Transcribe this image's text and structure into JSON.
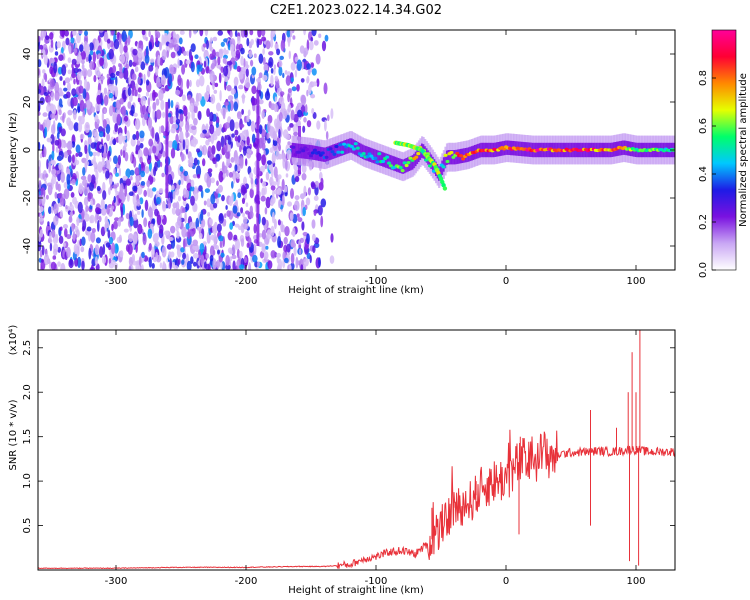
{
  "title": "C2E1.2023.022.14.34.G02",
  "chart_data": [
    {
      "type": "heatmap",
      "title": "C2E1.2023.022.14.34.G02",
      "xlabel": "Height of straight line (km)",
      "ylabel": "Frequency (Hz)",
      "xlim": [
        -360,
        130
      ],
      "ylim": [
        -50,
        50
      ],
      "x_ticks": [
        -300,
        -200,
        -100,
        0,
        100
      ],
      "x_tick_labels": [
        "-300",
        "-200",
        "-100",
        "0",
        "100"
      ],
      "y_ticks": [
        -40,
        -20,
        0,
        20,
        40
      ],
      "y_tick_labels": [
        "-40",
        "-20",
        "0",
        "20",
        "40"
      ],
      "colorbar": {
        "label": "Normalized spectral amplitude",
        "range": [
          0,
          1
        ],
        "ticks": [
          0.0,
          0.2,
          0.4,
          0.6,
          0.8
        ],
        "tick_labels": [
          "0.0",
          "0.2",
          "0.4",
          "0.6",
          "0.8"
        ],
        "colors": [
          "#ffffff",
          "#c9a7f4",
          "#7a11e0",
          "#1e1be6",
          "#00c8ff",
          "#00ff6a",
          "#e6ff00",
          "#ff8800",
          "#ff0033",
          "#ff0099"
        ]
      },
      "noise_region": {
        "x_range": [
          -360,
          -130
        ],
        "freq_range": [
          -50,
          50
        ]
      },
      "trace": {
        "x": [
          -165,
          -150,
          -140,
          -130,
          -120,
          -110,
          -100,
          -90,
          -80,
          -72,
          -65,
          -58,
          -52,
          -46,
          -40,
          -30,
          -20,
          -10,
          0,
          20,
          40,
          60,
          80,
          90,
          100,
          110,
          130
        ],
        "freq": [
          0,
          -1,
          -2,
          0,
          2,
          -1,
          -3,
          -5,
          -7,
          -5,
          0,
          -5,
          -10,
          -3,
          -3,
          -2,
          0,
          0,
          1,
          0,
          0,
          0,
          0,
          1,
          0,
          0,
          0
        ],
        "amplitude": [
          0.25,
          0.3,
          0.35,
          0.4,
          0.5,
          0.5,
          0.5,
          0.55,
          0.6,
          0.75,
          0.7,
          0.55,
          0.5,
          0.7,
          0.8,
          0.85,
          0.9,
          0.9,
          0.9,
          0.95,
          0.9,
          0.9,
          0.85,
          0.75,
          0.65,
          0.6,
          0.55
        ]
      },
      "secondary_trace": {
        "x": [
          -85,
          -75,
          -65,
          -55,
          -50,
          -47
        ],
        "freq": [
          3,
          2,
          0,
          -6,
          -12,
          -16
        ]
      }
    },
    {
      "type": "line",
      "xlabel": "Height of straight line (km)",
      "ylabel": "SNR (10 * v/v)",
      "y_multiplier": "(x10⁴)",
      "xlim": [
        -360,
        130
      ],
      "ylim": [
        0,
        2.7
      ],
      "x_ticks": [
        -300,
        -200,
        -100,
        0,
        100
      ],
      "x_tick_labels": [
        "-300",
        "-200",
        "-100",
        "0",
        "100"
      ],
      "y_ticks": [
        0.5,
        1.0,
        1.5,
        2.0,
        2.5
      ],
      "y_tick_labels": [
        "0.5",
        "1.0",
        "1.5",
        "2.0",
        "2.5"
      ],
      "color": "#e8323a",
      "series": [
        {
          "x": [
            -360,
            -300,
            -250,
            -200,
            -160,
            -140,
            -120,
            -110,
            -100,
            -90,
            -80,
            -70,
            -60,
            -50,
            -40,
            -30,
            -25,
            -20,
            -15,
            -10,
            -5,
            0,
            5,
            10,
            20,
            30,
            40,
            50,
            60,
            65,
            70,
            80,
            90,
            95,
            100,
            102,
            105,
            110,
            120,
            130
          ],
          "y": [
            0.02,
            0.02,
            0.03,
            0.03,
            0.04,
            0.04,
            0.06,
            0.12,
            0.15,
            0.2,
            0.22,
            0.18,
            0.3,
            0.45,
            0.7,
            0.75,
            0.8,
            0.9,
            0.95,
            1.0,
            1.0,
            1.05,
            1.1,
            1.2,
            1.25,
            1.3,
            1.3,
            1.32,
            1.33,
            1.33,
            1.34,
            1.33,
            1.34,
            1.36,
            1.35,
            1.35,
            1.34,
            1.33,
            1.33,
            1.33
          ]
        }
      ],
      "spikes": [
        {
          "x": -57,
          "y": 0.7
        },
        {
          "x": -40,
          "y": 0.8
        },
        {
          "x": -33,
          "y": 0.75
        },
        {
          "x": -23,
          "y": 1.0
        },
        {
          "x": -12,
          "y": 1.1
        },
        {
          "x": -5,
          "y": 1.08
        },
        {
          "x": 11,
          "y": 1.5
        },
        {
          "x": 65,
          "y": 1.8
        },
        {
          "x": 85,
          "y": 1.6
        },
        {
          "x": 94,
          "y": 2.0
        },
        {
          "x": 97,
          "y": 2.45
        },
        {
          "x": 100,
          "y": 2.0
        },
        {
          "x": 103,
          "y": 2.7
        }
      ],
      "dips": [
        {
          "x": 10,
          "y": 0.4
        },
        {
          "x": 65,
          "y": 0.5
        },
        {
          "x": 95,
          "y": 0.1
        },
        {
          "x": 102,
          "y": 0.05
        }
      ]
    }
  ]
}
